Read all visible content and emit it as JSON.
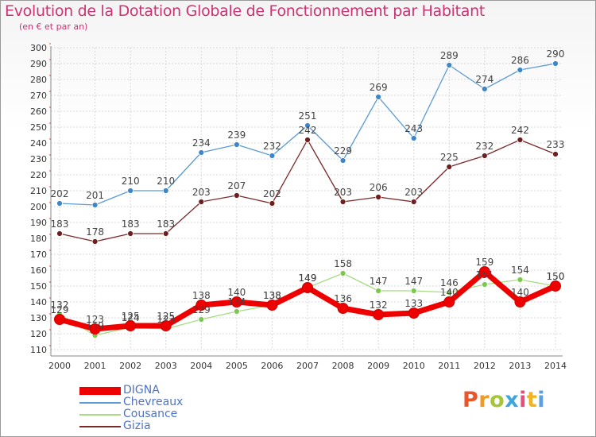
{
  "title": "Evolution de la Dotation Globale de Fonctionnement par Habitant",
  "subtitle": "(en € et par an)",
  "brand": {
    "letters": [
      "P",
      "r",
      "o",
      "x",
      "i",
      "t",
      "i"
    ],
    "colors": [
      "#e8562a",
      "#f09b25",
      "#a5c63b",
      "#3ea6dc",
      "#e84e7b",
      "#f0b51e",
      "#5aa0e0"
    ]
  },
  "chart_data": {
    "type": "line",
    "x": [
      2000,
      2001,
      2002,
      2003,
      2004,
      2005,
      2006,
      2007,
      2008,
      2009,
      2010,
      2011,
      2012,
      2013,
      2014
    ],
    "ylim": [
      110,
      300
    ],
    "yticks": [
      110,
      120,
      130,
      140,
      150,
      160,
      170,
      180,
      190,
      200,
      210,
      220,
      230,
      240,
      250,
      260,
      270,
      280,
      290,
      300
    ],
    "grid": true,
    "legend_position": "bottom-left",
    "series": [
      {
        "name": "Chevreaux",
        "color": "#5b9bd5",
        "marker": "#3f86c9",
        "values": [
          202,
          201,
          210,
          210,
          234,
          239,
          232,
          251,
          229,
          269,
          243,
          289,
          274,
          286,
          290
        ]
      },
      {
        "name": "Gizia",
        "color": "#7b2a2a",
        "marker": "#6e1e1e",
        "values": [
          183,
          178,
          183,
          183,
          203,
          207,
          202,
          242,
          203,
          206,
          203,
          225,
          232,
          242,
          233
        ]
      },
      {
        "name": "Cousance",
        "color": "#a7dc82",
        "marker": "#79c94f",
        "values": [
          132,
          119,
          124,
          123,
          129,
          134,
          138,
          149,
          158,
          147,
          147,
          146,
          151,
          154,
          150
        ]
      },
      {
        "name": "DIGNA",
        "color": "#ee0000",
        "marker": "#ee0000",
        "emphasis": true,
        "values": [
          129,
          123,
          125,
          125,
          138,
          140,
          138,
          149,
          136,
          132,
          133,
          140,
          159,
          140,
          150
        ]
      }
    ]
  },
  "legend_order": [
    "DIGNA",
    "Chevreaux",
    "Cousance",
    "Gizia"
  ]
}
